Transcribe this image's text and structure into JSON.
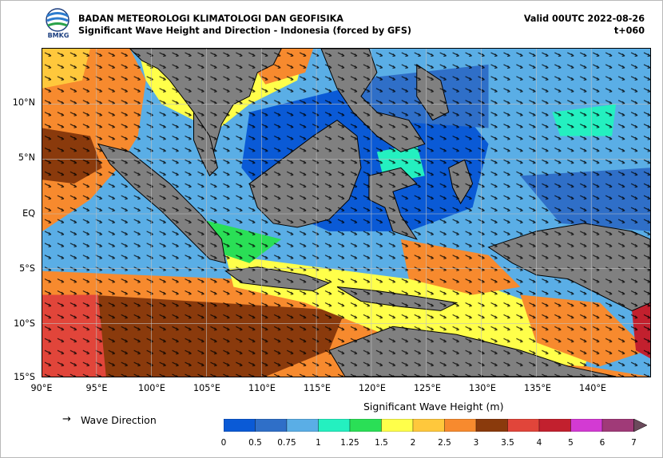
{
  "header": {
    "org_name": "BADAN METEOROLOGI KLIMATOLOGI DAN GEOFISIKA",
    "subtitle": "Significant Wave Height and Direction - Indonesia (forced by GFS)",
    "valid": "Valid 00UTC 2022-08-26",
    "lead": "t+060",
    "logo_text": "BMKG"
  },
  "axes": {
    "lat_ticks": [
      "10°N",
      "5°N",
      "EQ",
      "5°S",
      "10°S",
      "15°S"
    ],
    "lon_ticks": [
      "90°E",
      "95°E",
      "100°E",
      "105°E",
      "110°E",
      "115°E",
      "120°E",
      "125°E",
      "130°E",
      "135°E",
      "140°E"
    ],
    "lat_range": [
      -15,
      15
    ],
    "lon_range": [
      90,
      145
    ]
  },
  "legend": {
    "arrow_glyph": "→",
    "arrow_label": "Wave Direction",
    "colorbar_title": "Significant Wave Height (m)",
    "colorbar_ticks": [
      "0",
      "0.5",
      "0.75",
      "1",
      "1.25",
      "1.5",
      "2",
      "2.5",
      "3",
      "3.5",
      "4",
      "5",
      "6",
      "7"
    ],
    "colorbar_colors": [
      "#0a5ad6",
      "#2f6fc8",
      "#5aaee6",
      "#24f0c0",
      "#2adf56",
      "#ffff4a",
      "#ffc83c",
      "#f78a2e",
      "#8a3a0c",
      "#e1453a",
      "#c2202e",
      "#d33ad3",
      "#a03a78"
    ]
  },
  "colors": {
    "land": "#808080",
    "coast": "#000000",
    "arrow": "#000000"
  }
}
